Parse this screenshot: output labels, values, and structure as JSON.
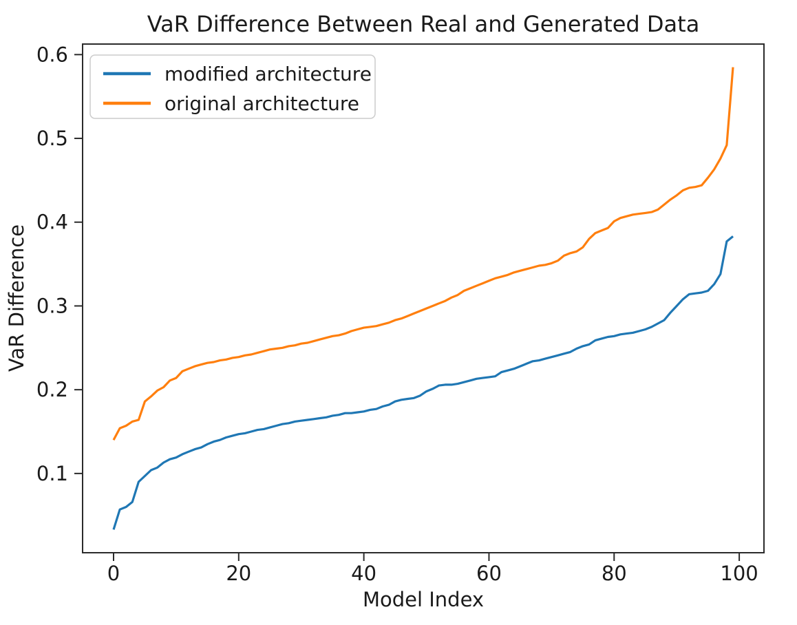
{
  "figure": {
    "background_color": "#ffffff",
    "spine_color": "#2a2a2a",
    "text_color": "#1a1a1a"
  },
  "chart_data": {
    "type": "line",
    "title": "VaR Difference Between Real and Generated Data",
    "xlabel": "Model Index",
    "ylabel": "VaR Difference",
    "grid": false,
    "legend_position": "upper left",
    "xlim": [
      -4.95,
      103.95
    ],
    "ylim": [
      0.0054,
      0.6126
    ],
    "xticks": {
      "values": [
        0,
        20,
        40,
        60,
        80,
        100
      ],
      "labels": [
        "0",
        "20",
        "40",
        "60",
        "80",
        "100"
      ]
    },
    "yticks": {
      "values": [
        0.1,
        0.2,
        0.3,
        0.4,
        0.5,
        0.6
      ],
      "labels": [
        "0.1",
        "0.2",
        "0.3",
        "0.4",
        "0.5",
        "0.6"
      ]
    },
    "x": [
      0,
      1,
      2,
      3,
      4,
      5,
      6,
      7,
      8,
      9,
      10,
      11,
      12,
      13,
      14,
      15,
      16,
      17,
      18,
      19,
      20,
      21,
      22,
      23,
      24,
      25,
      26,
      27,
      28,
      29,
      30,
      31,
      32,
      33,
      34,
      35,
      36,
      37,
      38,
      39,
      40,
      41,
      42,
      43,
      44,
      45,
      46,
      47,
      48,
      49,
      50,
      51,
      52,
      53,
      54,
      55,
      56,
      57,
      58,
      59,
      60,
      61,
      62,
      63,
      64,
      65,
      66,
      67,
      68,
      69,
      70,
      71,
      72,
      73,
      74,
      75,
      76,
      77,
      78,
      79,
      80,
      81,
      82,
      83,
      84,
      85,
      86,
      87,
      88,
      89,
      90,
      91,
      92,
      93,
      94,
      95,
      96,
      97,
      98,
      99
    ],
    "series": [
      {
        "name": "modified architecture",
        "color": "#1f77b4",
        "values": [
          0.033,
          0.057,
          0.06,
          0.066,
          0.09,
          0.097,
          0.104,
          0.107,
          0.113,
          0.117,
          0.119,
          0.123,
          0.126,
          0.129,
          0.131,
          0.135,
          0.138,
          0.14,
          0.143,
          0.145,
          0.147,
          0.148,
          0.15,
          0.152,
          0.153,
          0.155,
          0.157,
          0.159,
          0.16,
          0.162,
          0.163,
          0.164,
          0.165,
          0.166,
          0.167,
          0.169,
          0.17,
          0.172,
          0.172,
          0.173,
          0.174,
          0.176,
          0.177,
          0.18,
          0.182,
          0.186,
          0.188,
          0.189,
          0.19,
          0.193,
          0.198,
          0.201,
          0.205,
          0.206,
          0.206,
          0.207,
          0.209,
          0.211,
          0.213,
          0.214,
          0.215,
          0.216,
          0.221,
          0.223,
          0.225,
          0.228,
          0.231,
          0.234,
          0.235,
          0.237,
          0.239,
          0.241,
          0.243,
          0.245,
          0.249,
          0.252,
          0.254,
          0.259,
          0.261,
          0.263,
          0.264,
          0.266,
          0.267,
          0.268,
          0.27,
          0.272,
          0.275,
          0.279,
          0.283,
          0.292,
          0.3,
          0.308,
          0.314,
          0.315,
          0.316,
          0.318,
          0.326,
          0.338,
          0.377,
          0.383
        ]
      },
      {
        "name": "original architecture",
        "color": "#ff7f0e",
        "values": [
          0.14,
          0.154,
          0.157,
          0.162,
          0.164,
          0.186,
          0.192,
          0.199,
          0.203,
          0.211,
          0.214,
          0.222,
          0.225,
          0.228,
          0.23,
          0.232,
          0.233,
          0.235,
          0.236,
          0.238,
          0.239,
          0.241,
          0.242,
          0.244,
          0.246,
          0.248,
          0.249,
          0.25,
          0.252,
          0.253,
          0.255,
          0.256,
          0.258,
          0.26,
          0.262,
          0.264,
          0.265,
          0.267,
          0.27,
          0.272,
          0.274,
          0.275,
          0.276,
          0.278,
          0.28,
          0.283,
          0.285,
          0.288,
          0.291,
          0.294,
          0.297,
          0.3,
          0.303,
          0.306,
          0.31,
          0.313,
          0.318,
          0.321,
          0.324,
          0.327,
          0.33,
          0.333,
          0.335,
          0.337,
          0.34,
          0.342,
          0.344,
          0.346,
          0.348,
          0.349,
          0.351,
          0.354,
          0.36,
          0.363,
          0.365,
          0.37,
          0.38,
          0.387,
          0.39,
          0.393,
          0.401,
          0.405,
          0.407,
          0.409,
          0.41,
          0.411,
          0.412,
          0.415,
          0.421,
          0.427,
          0.432,
          0.438,
          0.441,
          0.442,
          0.444,
          0.453,
          0.463,
          0.476,
          0.492,
          0.585
        ]
      }
    ]
  }
}
